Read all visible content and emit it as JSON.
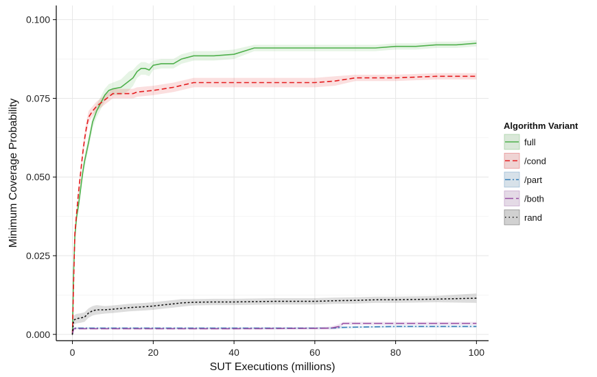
{
  "chart_data": {
    "type": "line",
    "title": "",
    "xlabel": "SUT Executions (millions)",
    "ylabel": "Minimum Coverage Probability",
    "xlim": [
      -4,
      103
    ],
    "ylim": [
      -0.002,
      0.1045
    ],
    "xticks": [
      0,
      20,
      40,
      60,
      80,
      100
    ],
    "yticks": [
      0.0,
      0.025,
      0.05,
      0.075,
      0.1
    ],
    "ytick_labels": [
      "0.000",
      "0.025",
      "0.050",
      "0.075",
      "0.100"
    ],
    "grid": true,
    "legend": {
      "title": "Algorithm Variant",
      "position": "right"
    },
    "series": [
      {
        "name": "full",
        "color": "#4daf4a",
        "dash": "solid",
        "x": [
          0,
          0.3,
          0.6,
          1,
          1.5,
          2,
          2.5,
          3,
          4,
          5,
          6,
          7,
          8,
          9,
          10,
          12,
          14,
          15,
          16,
          17,
          18,
          19,
          20,
          22,
          25,
          27,
          30,
          35,
          40,
          45,
          50,
          55,
          60,
          65,
          70,
          75,
          80,
          85,
          90,
          95,
          100
        ],
        "y": [
          0.0,
          0.02,
          0.031,
          0.037,
          0.041,
          0.046,
          0.051,
          0.055,
          0.061,
          0.0675,
          0.071,
          0.0735,
          0.076,
          0.0775,
          0.078,
          0.0785,
          0.0805,
          0.0815,
          0.0835,
          0.0845,
          0.0845,
          0.084,
          0.0855,
          0.086,
          0.086,
          0.0875,
          0.0885,
          0.0885,
          0.089,
          0.091,
          0.091,
          0.091,
          0.091,
          0.091,
          0.091,
          0.091,
          0.0915,
          0.0915,
          0.092,
          0.092,
          0.0925
        ],
        "band": [
          0.0015,
          0.0015,
          0.002,
          0.002,
          0.002,
          0.002,
          0.002,
          0.002,
          0.002,
          0.002,
          0.002,
          0.002,
          0.002,
          0.002,
          0.002,
          0.0025,
          0.003,
          0.0025,
          0.002,
          0.002,
          0.002,
          0.002,
          0.0015,
          0.0015,
          0.0015,
          0.0015,
          0.0015,
          0.0015,
          0.0015,
          0.001,
          0.001,
          0.001,
          0.001,
          0.001,
          0.001,
          0.001,
          0.001,
          0.001,
          0.001,
          0.001,
          0.001
        ]
      },
      {
        "name": "/cond",
        "color": "#e41a1c",
        "dash": "dashed",
        "x": [
          0,
          0.3,
          0.6,
          1,
          1.5,
          2,
          2.5,
          3,
          3.5,
          4,
          5,
          6,
          7,
          8,
          9,
          10,
          12,
          15,
          16,
          20,
          25,
          30,
          40,
          50,
          60,
          65,
          70,
          80,
          90,
          100
        ],
        "y": [
          0.0,
          0.017,
          0.032,
          0.038,
          0.045,
          0.051,
          0.057,
          0.062,
          0.066,
          0.069,
          0.071,
          0.0725,
          0.0735,
          0.0745,
          0.0755,
          0.0765,
          0.0765,
          0.0765,
          0.077,
          0.0775,
          0.0785,
          0.08,
          0.08,
          0.08,
          0.08,
          0.0805,
          0.0815,
          0.0815,
          0.082,
          0.082
        ],
        "band": [
          0.0015,
          0.0015,
          0.002,
          0.002,
          0.002,
          0.002,
          0.002,
          0.002,
          0.002,
          0.002,
          0.0015,
          0.0015,
          0.0015,
          0.0015,
          0.0015,
          0.0015,
          0.0015,
          0.0015,
          0.0015,
          0.0015,
          0.0015,
          0.0015,
          0.0015,
          0.0015,
          0.0015,
          0.0015,
          0.001,
          0.001,
          0.001,
          0.001
        ]
      },
      {
        "name": "/part",
        "color": "#377eb8",
        "dash": "dashdot",
        "x": [
          0,
          0.3,
          5,
          20,
          40,
          60,
          65,
          66,
          70,
          80,
          90,
          100
        ],
        "y": [
          0.0,
          0.002,
          0.002,
          0.002,
          0.002,
          0.002,
          0.002,
          0.0022,
          0.0023,
          0.0025,
          0.0025,
          0.0025
        ],
        "band": [
          0.0003,
          0.0003,
          0.0003,
          0.0003,
          0.0003,
          0.0003,
          0.0003,
          0.0004,
          0.0004,
          0.0004,
          0.0004,
          0.0004
        ]
      },
      {
        "name": "/both",
        "color": "#984ea3",
        "dash": "longdash",
        "x": [
          0,
          0.3,
          5,
          20,
          40,
          60,
          64,
          66,
          67,
          70,
          80,
          90,
          100
        ],
        "y": [
          0.0,
          0.0018,
          0.0018,
          0.0018,
          0.0018,
          0.0019,
          0.002,
          0.0025,
          0.0035,
          0.0035,
          0.0035,
          0.0035,
          0.0035
        ],
        "band": [
          0.0002,
          0.0002,
          0.0002,
          0.0002,
          0.0003,
          0.0004,
          0.0005,
          0.0008,
          0.0005,
          0.0005,
          0.0005,
          0.0005,
          0.0005
        ]
      },
      {
        "name": "rand",
        "color": "#111111",
        "dash": "dotted",
        "x": [
          0,
          0.3,
          1,
          2,
          3,
          4,
          5,
          6,
          8,
          10,
          14,
          18,
          20,
          22,
          25,
          27,
          30,
          35,
          40,
          50,
          60,
          65,
          70,
          75,
          80,
          90,
          100
        ],
        "y": [
          0.0,
          0.0045,
          0.005,
          0.0052,
          0.0055,
          0.0068,
          0.0075,
          0.0078,
          0.0078,
          0.008,
          0.0085,
          0.0088,
          0.009,
          0.0093,
          0.0097,
          0.01,
          0.0102,
          0.0103,
          0.0103,
          0.0105,
          0.0105,
          0.0107,
          0.0108,
          0.011,
          0.011,
          0.0112,
          0.0115
        ],
        "band": [
          0.001,
          0.0015,
          0.0015,
          0.0015,
          0.0015,
          0.0015,
          0.0015,
          0.0015,
          0.0012,
          0.0012,
          0.0012,
          0.0012,
          0.0012,
          0.0012,
          0.0012,
          0.0012,
          0.001,
          0.001,
          0.001,
          0.001,
          0.001,
          0.001,
          0.001,
          0.001,
          0.001,
          0.001,
          0.0015
        ]
      }
    ]
  }
}
